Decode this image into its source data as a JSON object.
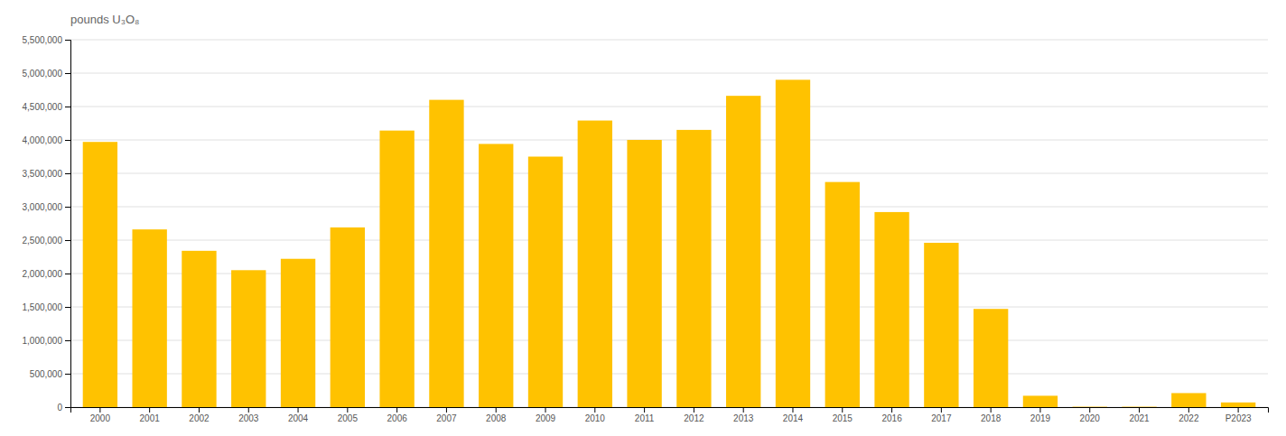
{
  "chart_data": {
    "type": "bar",
    "ylabel": "pounds U₃O₈",
    "categories": [
      "2000",
      "2001",
      "2002",
      "2003",
      "2004",
      "2005",
      "2006",
      "2007",
      "2008",
      "2009",
      "2010",
      "2011",
      "2012",
      "2013",
      "2014",
      "2015",
      "2016",
      "2017",
      "2018",
      "2019",
      "2020",
      "2021",
      "2022",
      "P2023"
    ],
    "values": [
      3970000,
      2660000,
      2340000,
      2050000,
      2220000,
      2690000,
      4140000,
      4600000,
      3940000,
      3750000,
      4290000,
      4000000,
      4150000,
      4660000,
      4900000,
      3370000,
      2920000,
      2460000,
      1470000,
      170000,
      6000,
      6000,
      210000,
      70000
    ],
    "color": "#FFC200",
    "ylim": [
      0,
      5500000
    ],
    "yticks": [
      0,
      {
        "value": 500000,
        "label": "500,000"
      },
      {
        "value": 1000000,
        "label": "1,000,000"
      },
      {
        "value": 1500000,
        "label": "1,500,000"
      },
      {
        "value": 2000000,
        "label": "2,000,000"
      },
      {
        "value": 2500000,
        "label": "2,500,000"
      },
      {
        "value": 3000000,
        "label": "3,000,000"
      },
      {
        "value": 3500000,
        "label": "3,500,000"
      },
      {
        "value": 4000000,
        "label": "4,000,000"
      },
      {
        "value": 4500000,
        "label": "4,500,000"
      },
      {
        "value": 5000000,
        "label": "5,000,000"
      },
      {
        "value": 5500000,
        "label": "5,500,000"
      }
    ],
    "grid": true
  }
}
